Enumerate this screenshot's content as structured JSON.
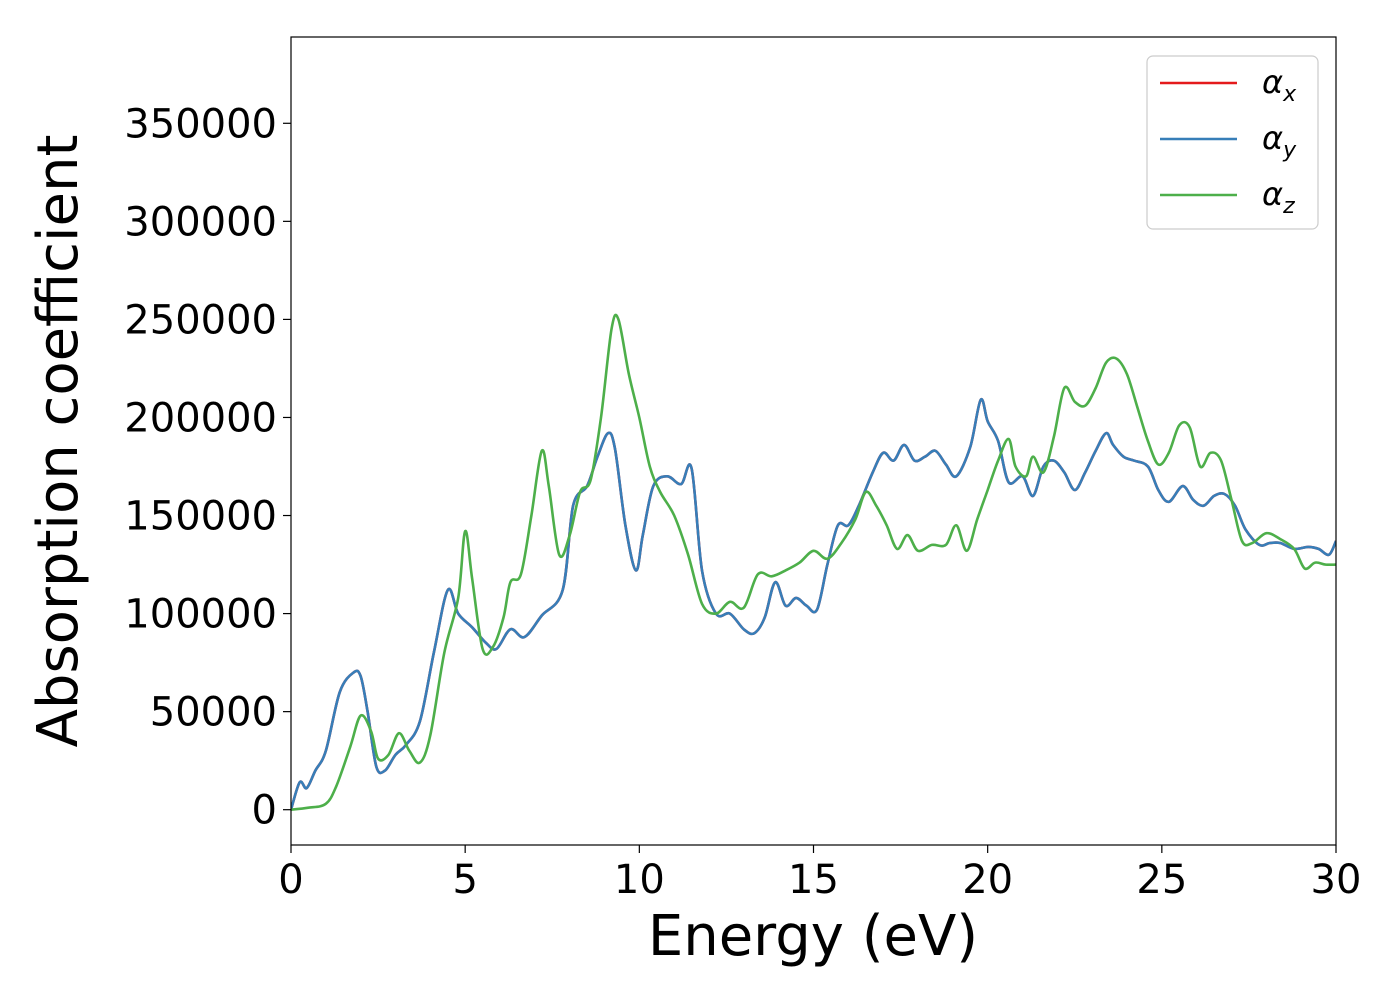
{
  "chart_data": {
    "type": "line",
    "title": "",
    "xlabel": "Energy (eV)",
    "ylabel": "Absorption coefficient",
    "xlim": [
      0,
      30
    ],
    "ylim": [
      -18000,
      394000
    ],
    "xticks": [
      0,
      5,
      10,
      15,
      20,
      25,
      30
    ],
    "yticks": [
      0,
      50000,
      100000,
      150000,
      200000,
      250000,
      300000,
      350000
    ],
    "grid": false,
    "legend_position": "top-right",
    "series": [
      {
        "name": "αx",
        "symbol": "α",
        "subscript": "x",
        "color": "#e41a1c",
        "x": [
          0,
          0.25,
          0.45,
          0.7,
          1.0,
          1.4,
          1.8,
          2.0,
          2.2,
          2.45,
          2.7,
          3.0,
          3.3,
          3.7,
          4.1,
          4.5,
          4.8,
          5.2,
          5.6,
          5.9,
          6.3,
          6.7,
          7.2,
          7.8,
          8.1,
          8.5,
          8.8,
          9.1,
          9.3,
          9.6,
          9.9,
          10.1,
          10.4,
          10.8,
          11.2,
          11.5,
          11.8,
          12.2,
          12.6,
          13.0,
          13.3,
          13.6,
          13.9,
          14.2,
          14.5,
          14.8,
          15.1,
          15.4,
          15.7,
          16.0,
          16.3,
          16.7,
          17.0,
          17.3,
          17.6,
          17.9,
          18.2,
          18.5,
          18.8,
          19.1,
          19.5,
          19.8,
          20.0,
          20.3,
          20.6,
          21.0,
          21.3,
          21.6,
          21.9,
          22.2,
          22.5,
          22.8,
          23.1,
          23.4,
          23.6,
          23.9,
          24.2,
          24.6,
          24.9,
          25.2,
          25.6,
          25.9,
          26.2,
          26.5,
          26.8,
          27.1,
          27.4,
          27.8,
          28.1,
          28.4,
          28.8,
          29.2,
          29.5,
          29.8,
          30.0
        ],
        "y": [
          0,
          14000,
          11000,
          20000,
          30000,
          60000,
          70000,
          68000,
          50000,
          22000,
          20000,
          28000,
          33000,
          45000,
          80000,
          112000,
          100000,
          93000,
          85000,
          82000,
          92000,
          88000,
          99000,
          112000,
          155000,
          165000,
          180000,
          192000,
          184000,
          145000,
          122000,
          140000,
          165000,
          170000,
          166000,
          174000,
          122000,
          100000,
          100000,
          92000,
          90000,
          98000,
          116000,
          104000,
          108000,
          104000,
          102000,
          125000,
          145000,
          145000,
          155000,
          172000,
          182000,
          178000,
          186000,
          178000,
          180000,
          183000,
          176000,
          170000,
          185000,
          209000,
          198000,
          188000,
          167000,
          170000,
          160000,
          175000,
          178000,
          172000,
          163000,
          172000,
          183000,
          192000,
          186000,
          180000,
          178000,
          175000,
          163000,
          157000,
          165000,
          158000,
          155000,
          160000,
          161000,
          155000,
          143000,
          135000,
          136000,
          136000,
          133000,
          134000,
          133000,
          130000,
          137000
        ]
      },
      {
        "name": "αy",
        "symbol": "α",
        "subscript": "y",
        "color": "#377eb8",
        "x": [
          0,
          0.25,
          0.45,
          0.7,
          1.0,
          1.4,
          1.8,
          2.0,
          2.2,
          2.45,
          2.7,
          3.0,
          3.3,
          3.7,
          4.1,
          4.5,
          4.8,
          5.2,
          5.6,
          5.9,
          6.3,
          6.7,
          7.2,
          7.8,
          8.1,
          8.5,
          8.8,
          9.1,
          9.3,
          9.6,
          9.9,
          10.1,
          10.4,
          10.8,
          11.2,
          11.5,
          11.8,
          12.2,
          12.6,
          13.0,
          13.3,
          13.6,
          13.9,
          14.2,
          14.5,
          14.8,
          15.1,
          15.4,
          15.7,
          16.0,
          16.3,
          16.7,
          17.0,
          17.3,
          17.6,
          17.9,
          18.2,
          18.5,
          18.8,
          19.1,
          19.5,
          19.8,
          20.0,
          20.3,
          20.6,
          21.0,
          21.3,
          21.6,
          21.9,
          22.2,
          22.5,
          22.8,
          23.1,
          23.4,
          23.6,
          23.9,
          24.2,
          24.6,
          24.9,
          25.2,
          25.6,
          25.9,
          26.2,
          26.5,
          26.8,
          27.1,
          27.4,
          27.8,
          28.1,
          28.4,
          28.8,
          29.2,
          29.5,
          29.8,
          30.0
        ],
        "y": [
          0,
          14000,
          11000,
          20000,
          30000,
          60000,
          70000,
          68000,
          50000,
          22000,
          20000,
          28000,
          33000,
          45000,
          80000,
          112000,
          100000,
          93000,
          85000,
          82000,
          92000,
          88000,
          99000,
          112000,
          155000,
          165000,
          180000,
          192000,
          184000,
          145000,
          122000,
          140000,
          165000,
          170000,
          166000,
          174000,
          122000,
          100000,
          100000,
          92000,
          90000,
          98000,
          116000,
          104000,
          108000,
          104000,
          102000,
          125000,
          145000,
          145000,
          155000,
          172000,
          182000,
          178000,
          186000,
          178000,
          180000,
          183000,
          176000,
          170000,
          185000,
          209000,
          198000,
          188000,
          167000,
          170000,
          160000,
          175000,
          178000,
          172000,
          163000,
          172000,
          183000,
          192000,
          186000,
          180000,
          178000,
          175000,
          163000,
          157000,
          165000,
          158000,
          155000,
          160000,
          161000,
          155000,
          143000,
          135000,
          136000,
          136000,
          133000,
          134000,
          133000,
          130000,
          137000
        ]
      },
      {
        "name": "αz",
        "symbol": "α",
        "subscript": "z",
        "color": "#4daf4a",
        "x": [
          0,
          0.5,
          1.0,
          1.3,
          1.7,
          2.0,
          2.3,
          2.5,
          2.8,
          3.1,
          3.4,
          3.7,
          4.0,
          4.4,
          4.8,
          5.0,
          5.2,
          5.5,
          5.8,
          6.1,
          6.3,
          6.6,
          6.9,
          7.2,
          7.4,
          7.7,
          8.0,
          8.3,
          8.6,
          8.9,
          9.2,
          9.4,
          9.7,
          10.0,
          10.3,
          10.6,
          11.0,
          11.4,
          11.8,
          12.2,
          12.6,
          13.0,
          13.4,
          13.8,
          14.2,
          14.6,
          15.0,
          15.4,
          15.8,
          16.2,
          16.5,
          16.8,
          17.1,
          17.4,
          17.7,
          18.0,
          18.4,
          18.8,
          19.1,
          19.4,
          19.7,
          20.0,
          20.3,
          20.6,
          20.8,
          21.1,
          21.3,
          21.6,
          21.9,
          22.2,
          22.5,
          22.8,
          23.1,
          23.4,
          23.7,
          24.0,
          24.3,
          24.6,
          24.9,
          25.2,
          25.5,
          25.8,
          26.1,
          26.4,
          26.7,
          27.0,
          27.3,
          27.6,
          28.0,
          28.4,
          28.8,
          29.1,
          29.4,
          29.7,
          30.0
        ],
        "y": [
          0,
          1000,
          3000,
          12000,
          32000,
          48000,
          40000,
          26000,
          28000,
          39000,
          30000,
          24000,
          38000,
          80000,
          108000,
          142000,
          118000,
          82000,
          83000,
          98000,
          116000,
          120000,
          150000,
          183000,
          165000,
          130000,
          140000,
          162000,
          168000,
          200000,
          245000,
          250000,
          222000,
          200000,
          175000,
          162000,
          150000,
          130000,
          105000,
          100000,
          106000,
          103000,
          120000,
          119000,
          122000,
          126000,
          132000,
          128000,
          136000,
          148000,
          162000,
          155000,
          145000,
          133000,
          140000,
          132000,
          135000,
          135000,
          145000,
          132000,
          148000,
          163000,
          178000,
          189000,
          175000,
          170000,
          180000,
          172000,
          190000,
          215000,
          208000,
          206000,
          215000,
          228000,
          230000,
          222000,
          205000,
          188000,
          176000,
          182000,
          196000,
          195000,
          175000,
          182000,
          178000,
          158000,
          137000,
          136000,
          141000,
          138000,
          133000,
          123000,
          126000,
          125000,
          125000
        ]
      }
    ]
  }
}
